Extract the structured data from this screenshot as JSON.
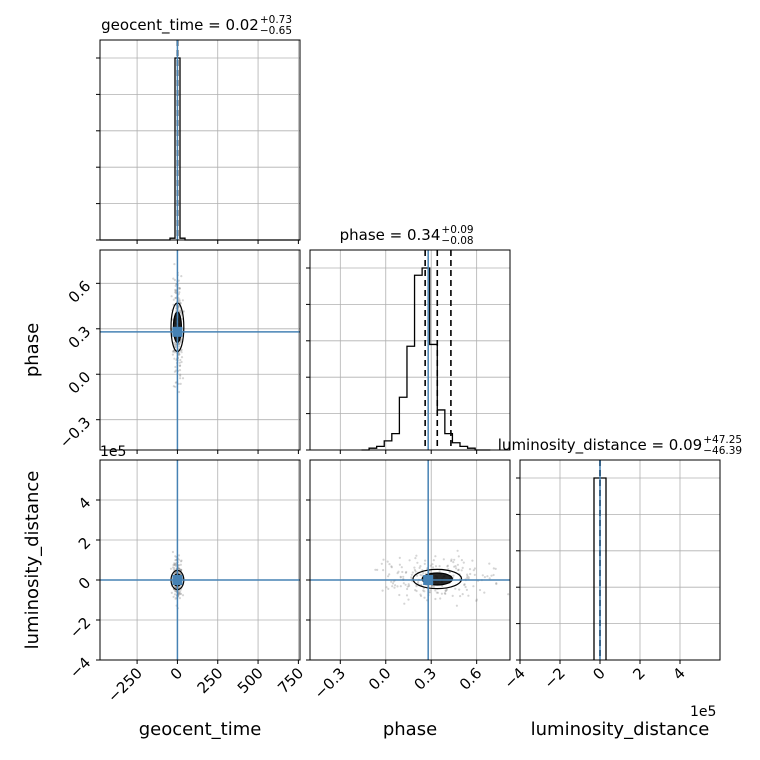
{
  "chart_data": {
    "type": "corner",
    "parameters": [
      "geocent_time",
      "phase",
      "luminosity_distance"
    ],
    "truths": {
      "geocent_time": 0.0,
      "phase": 0.28,
      "luminosity_distance": 0.0
    },
    "scale_exponents": {
      "luminosity_distance": "1e5"
    },
    "titles": [
      {
        "param": "geocent_time",
        "prefix": "geocent_time = ",
        "value": "0.02",
        "plus": "+0.73",
        "minus": "−0.65"
      },
      {
        "param": "phase",
        "prefix": "phase = ",
        "value": "0.34",
        "plus": "+0.09",
        "minus": "−0.08"
      },
      {
        "param": "luminosity_distance",
        "prefix": "luminosity_distance = ",
        "value": "0.09",
        "plus": "+47.25",
        "minus": "−46.39"
      }
    ],
    "axes": {
      "geocent_time": {
        "range": [
          -480,
          760
        ],
        "ticks": [
          -250,
          0,
          250,
          500,
          750
        ],
        "tick_labels": [
          "−250",
          "0",
          "250",
          "500",
          "750"
        ]
      },
      "phase": {
        "range": [
          -0.5,
          0.82
        ],
        "ticks": [
          -0.3,
          0.0,
          0.3,
          0.6
        ],
        "tick_labels": [
          "−0.3",
          "0.0",
          "0.3",
          "0.6"
        ]
      },
      "luminosity_distance": {
        "range": [
          -4,
          6
        ],
        "ticks": [
          -4,
          -2,
          0,
          2,
          4
        ],
        "tick_labels": [
          "−4",
          "−2",
          "0",
          "2",
          "4"
        ]
      }
    },
    "histograms": {
      "geocent_time": {
        "bin_edges": [
          -480,
          -418,
          -356,
          -294,
          -232,
          -170,
          -108,
          -46,
          -15,
          16,
          47,
          109,
          171,
          233,
          295,
          357,
          419,
          481,
          543,
          605,
          667,
          729,
          760
        ],
        "counts": [
          0,
          0,
          0,
          0,
          0,
          0,
          0,
          0.01,
          1.0,
          0.01,
          0,
          0,
          0,
          0,
          0,
          0,
          0,
          0,
          0,
          0,
          0,
          0
        ],
        "quantiles": [
          -0.63,
          0.02,
          0.75
        ]
      },
      "phase": {
        "bin_edges": [
          -0.16,
          -0.11,
          -0.06,
          -0.01,
          0.04,
          0.09,
          0.14,
          0.19,
          0.24,
          0.29,
          0.34,
          0.39,
          0.44,
          0.49,
          0.54,
          0.59,
          0.64,
          0.69
        ],
        "counts": [
          0.0,
          0.01,
          0.02,
          0.05,
          0.09,
          0.29,
          0.57,
          0.96,
          1.0,
          0.58,
          0.22,
          0.09,
          0.04,
          0.02,
          0.01,
          0.0,
          0.0
        ],
        "quantiles": [
          0.26,
          0.34,
          0.43
        ]
      },
      "luminosity_distance": {
        "bin_edges": [
          -0.3,
          0.0,
          0.3
        ],
        "counts": [
          1.0,
          1.0
        ],
        "quantiles": [
          -0.0046,
          0.0,
          0.0047
        ]
      }
    },
    "scatter_panels": [
      {
        "x": "geocent_time",
        "y": "phase",
        "center": [
          0,
          0.31
        ],
        "contour_half_width": 8,
        "contour_half_height": 0.1
      },
      {
        "x": "geocent_time",
        "y": "luminosity_distance",
        "center": [
          0,
          0.0
        ],
        "contour_half_width": 8,
        "contour_half_height": 0.3
      },
      {
        "x": "phase",
        "y": "luminosity_distance",
        "center": [
          0.34,
          0.05
        ],
        "contour_half_width": 0.1,
        "contour_half_height": 0.3
      }
    ],
    "grid": true,
    "line_colors": {
      "histogram": "#000000",
      "truth": "#4682b4",
      "points": "#888888"
    }
  }
}
